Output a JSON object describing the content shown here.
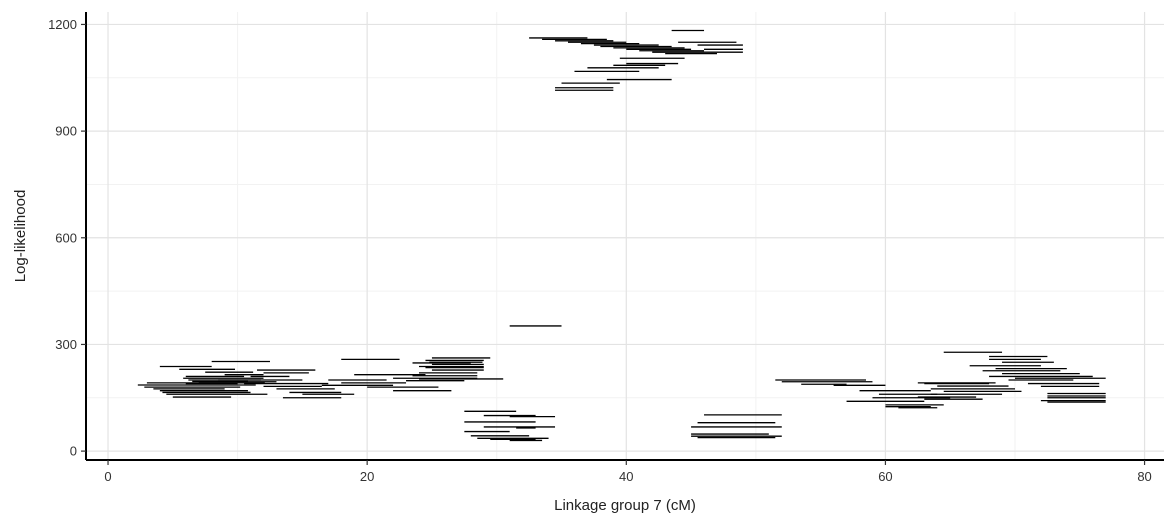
{
  "chart_data": {
    "type": "line",
    "xlabel": "Linkage group 7 (cM)",
    "ylabel": "Log-likelihood",
    "xlim": [
      -1.7,
      81.5
    ],
    "ylim": [
      -25,
      1235
    ],
    "x_ticks": [
      0,
      20,
      40,
      60,
      80
    ],
    "y_ticks": [
      0,
      300,
      600,
      900,
      1200
    ],
    "x_tick_labels": [
      "0",
      "20",
      "40",
      "60",
      "80"
    ],
    "y_tick_labels": [
      "0",
      "300",
      "600",
      "900",
      "1200"
    ],
    "grid": true,
    "legend": "none",
    "segments": [
      [
        2.3,
        11.4,
        186
      ],
      [
        2.8,
        10.2,
        180
      ],
      [
        3.0,
        12.1,
        192
      ],
      [
        3.5,
        9.0,
        175
      ],
      [
        4.0,
        10.8,
        170
      ],
      [
        4.2,
        11.0,
        165
      ],
      [
        4.5,
        12.3,
        160
      ],
      [
        5.0,
        9.5,
        152
      ],
      [
        4.0,
        8.0,
        238
      ],
      [
        5.5,
        9.8,
        230
      ],
      [
        8.0,
        12.5,
        252
      ],
      [
        7.5,
        11.2,
        222
      ],
      [
        6.0,
        10.5,
        210
      ],
      [
        5.8,
        12.0,
        205
      ],
      [
        6.2,
        11.8,
        200
      ],
      [
        6.5,
        10.8,
        196
      ],
      [
        6.0,
        10.0,
        190
      ],
      [
        7.0,
        13.0,
        195
      ],
      [
        8.5,
        15.0,
        200
      ],
      [
        9.0,
        12.0,
        215
      ],
      [
        11.5,
        16.0,
        228
      ],
      [
        12.0,
        15.5,
        220
      ],
      [
        11.0,
        14.0,
        210
      ],
      [
        10.5,
        17.0,
        190
      ],
      [
        12.0,
        16.5,
        182
      ],
      [
        13.0,
        17.5,
        175
      ],
      [
        14.0,
        18.0,
        165
      ],
      [
        15.0,
        19.0,
        160
      ],
      [
        13.5,
        18.0,
        150
      ],
      [
        17.0,
        21.5,
        200
      ],
      [
        18.0,
        23.0,
        192
      ],
      [
        16.5,
        22.0,
        185
      ],
      [
        19.0,
        24.5,
        215
      ],
      [
        18.0,
        22.5,
        258
      ],
      [
        20.0,
        25.5,
        180
      ],
      [
        22.0,
        26.5,
        170
      ],
      [
        23.5,
        28.0,
        248
      ],
      [
        24.0,
        29.0,
        238
      ],
      [
        25.0,
        29.5,
        262
      ],
      [
        24.5,
        29.0,
        255
      ],
      [
        24.8,
        28.9,
        250
      ],
      [
        25.0,
        29.0,
        244
      ],
      [
        24.5,
        29.0,
        235
      ],
      [
        25.0,
        29.0,
        228
      ],
      [
        24.0,
        28.5,
        220
      ],
      [
        23.5,
        28.5,
        212
      ],
      [
        22.0,
        28.5,
        205
      ],
      [
        23.0,
        27.5,
        198
      ],
      [
        24.0,
        30.5,
        203
      ],
      [
        31.0,
        35.0,
        352
      ],
      [
        27.5,
        31.5,
        112
      ],
      [
        29.0,
        33.0,
        100
      ],
      [
        31.0,
        34.5,
        97
      ],
      [
        27.5,
        33.0,
        82
      ],
      [
        29.0,
        34.5,
        68
      ],
      [
        31.5,
        33.0,
        65
      ],
      [
        27.5,
        31.0,
        55
      ],
      [
        28.0,
        32.5,
        43
      ],
      [
        28.5,
        34.0,
        36
      ],
      [
        29.5,
        33.0,
        33
      ],
      [
        31.0,
        33.5,
        30
      ],
      [
        32.5,
        37.0,
        1162
      ],
      [
        33.5,
        38.5,
        1158
      ],
      [
        34.5,
        39.0,
        1154
      ],
      [
        35.5,
        40.0,
        1150
      ],
      [
        36.5,
        41.0,
        1146
      ],
      [
        37.5,
        42.5,
        1142
      ],
      [
        38.0,
        43.5,
        1138
      ],
      [
        39.0,
        44.5,
        1134
      ],
      [
        40.0,
        45.0,
        1130
      ],
      [
        41.0,
        46.0,
        1126
      ],
      [
        42.0,
        46.5,
        1122
      ],
      [
        43.0,
        47.0,
        1118
      ],
      [
        44.0,
        48.5,
        1150
      ],
      [
        45.5,
        49.0,
        1142
      ],
      [
        46.0,
        49.0,
        1130
      ],
      [
        46.5,
        49.0,
        1122
      ],
      [
        43.5,
        46.0,
        1183
      ],
      [
        39.5,
        44.5,
        1105
      ],
      [
        40.0,
        44.0,
        1090
      ],
      [
        39.0,
        43.0,
        1085
      ],
      [
        37.0,
        42.5,
        1078
      ],
      [
        36.0,
        41.0,
        1068
      ],
      [
        38.5,
        43.5,
        1045
      ],
      [
        35.0,
        39.5,
        1035
      ],
      [
        34.5,
        39.0,
        1022
      ],
      [
        34.5,
        39.0,
        1015
      ],
      [
        46.0,
        52.0,
        102
      ],
      [
        45.5,
        51.5,
        80
      ],
      [
        45.0,
        52.0,
        68
      ],
      [
        45.0,
        51.0,
        48
      ],
      [
        45.0,
        52.0,
        42
      ],
      [
        45.5,
        51.5,
        38
      ],
      [
        51.5,
        58.5,
        200
      ],
      [
        52.0,
        59.0,
        195
      ],
      [
        56.0,
        60.0,
        185
      ],
      [
        53.5,
        57.0,
        188
      ],
      [
        58.0,
        63.5,
        170
      ],
      [
        59.5,
        64.0,
        160
      ],
      [
        59.0,
        65.0,
        150
      ],
      [
        57.0,
        63.0,
        140
      ],
      [
        60.0,
        64.5,
        130
      ],
      [
        60.0,
        63.5,
        125
      ],
      [
        61.0,
        64.0,
        122
      ],
      [
        62.5,
        68.5,
        192
      ],
      [
        63.0,
        68.0,
        190
      ],
      [
        64.0,
        69.5,
        183
      ],
      [
        63.5,
        70.0,
        175
      ],
      [
        64.5,
        70.5,
        168
      ],
      [
        63.5,
        69.0,
        160
      ],
      [
        62.5,
        67.0,
        152
      ],
      [
        63.0,
        67.5,
        146
      ],
      [
        64.5,
        69.0,
        278
      ],
      [
        68.0,
        72.5,
        266
      ],
      [
        68.0,
        72.0,
        258
      ],
      [
        69.0,
        73.0,
        250
      ],
      [
        66.5,
        72.0,
        240
      ],
      [
        68.5,
        74.0,
        232
      ],
      [
        67.5,
        73.5,
        226
      ],
      [
        69.0,
        75.0,
        218
      ],
      [
        68.0,
        76.0,
        210
      ],
      [
        70.0,
        77.0,
        205
      ],
      [
        69.5,
        74.5,
        200
      ],
      [
        71.0,
        76.5,
        190
      ],
      [
        72.0,
        76.5,
        182
      ],
      [
        72.5,
        77.0,
        162
      ],
      [
        72.5,
        77.0,
        155
      ],
      [
        72.5,
        77.0,
        150
      ],
      [
        72.0,
        77.0,
        142
      ],
      [
        72.5,
        77.0,
        138
      ]
    ]
  }
}
